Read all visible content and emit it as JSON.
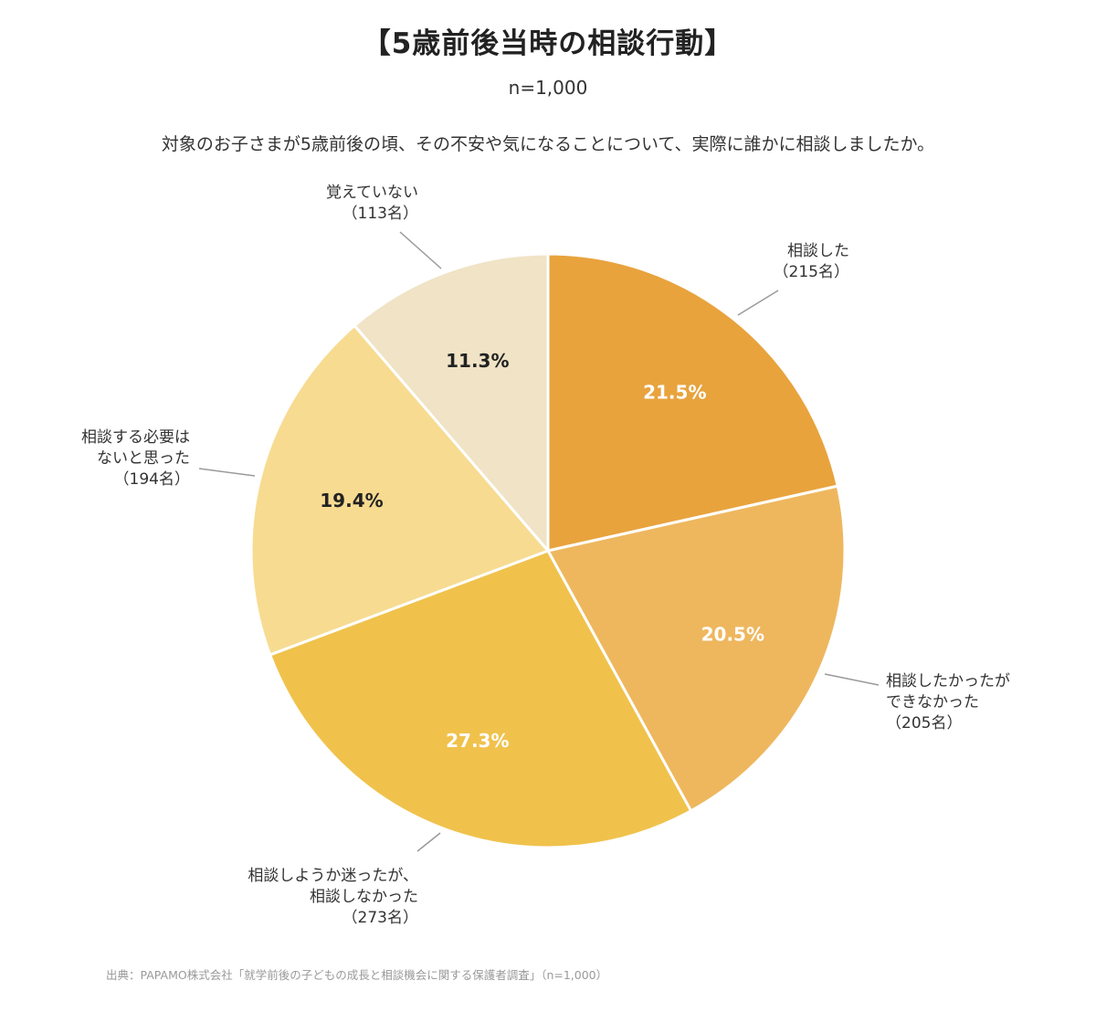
{
  "header": {
    "title": "【5歳前後当時の相談行動】",
    "sample": "n=1,000",
    "question": "対象のお子さまが5歳前後の頃、その不安や気になることについて、実際に誰かに相談しましたか。"
  },
  "chart_data": {
    "type": "pie",
    "title": "【5歳前後当時の相談行動】",
    "n": "n=1,000",
    "unit": "%",
    "slices": [
      {
        "label_lines": [
          "相談した",
          "（215名）"
        ],
        "value": 21.5,
        "count": 215,
        "value_label": "21.5%",
        "color": "#E8A33D",
        "pct_color": "#ffffff"
      },
      {
        "label_lines": [
          "相談したかったが",
          "できなかった",
          "（205名）"
        ],
        "value": 20.5,
        "count": 205,
        "value_label": "20.5%",
        "color": "#EEB75E",
        "pct_color": "#ffffff"
      },
      {
        "label_lines": [
          "相談しようか迷ったが、",
          "相談しなかった",
          "（273名）"
        ],
        "value": 27.3,
        "count": 273,
        "value_label": "27.3%",
        "color": "#F0C24C",
        "pct_color": "#ffffff"
      },
      {
        "label_lines": [
          "相談する必要は",
          "ないと思った",
          "（194名）"
        ],
        "value": 19.4,
        "count": 194,
        "value_label": "19.4%",
        "color": "#F7DB91",
        "pct_color": "#222222"
      },
      {
        "label_lines": [
          "覚えていない",
          "（113名）"
        ],
        "value": 11.3,
        "count": 113,
        "value_label": "11.3%",
        "color": "#F0E3C6",
        "pct_color": "#222222"
      }
    ]
  },
  "footer": {
    "source": "出典：PAPAMO株式会社「就学前後の子どもの成長と相談機会に関する保護者調査」（n=1,000）"
  }
}
